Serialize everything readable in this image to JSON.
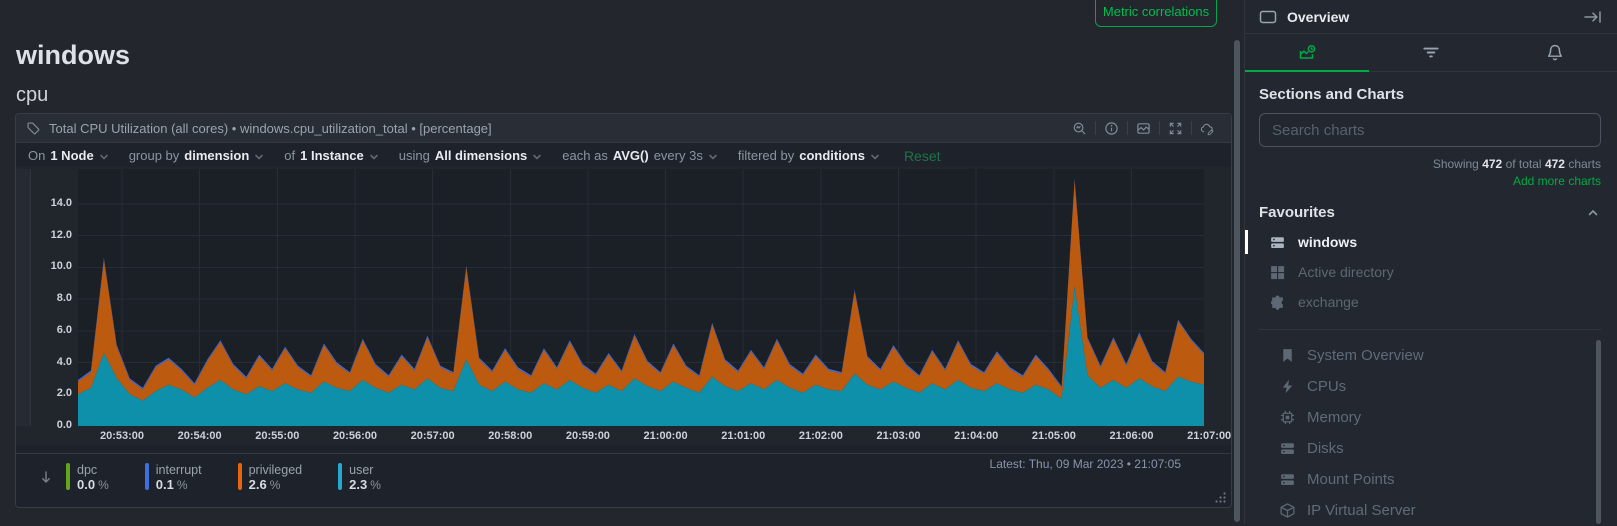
{
  "page": {
    "accent_green": "#00ab44"
  },
  "main": {
    "section_title": "windows",
    "subsection_title": "cpu",
    "metric_correlations_label": "Metric correlations",
    "chart": {
      "title": "Total CPU Utilization (all cores) • windows.cpu_utilization_total • [percentage]",
      "toolbar_icons": [
        "zoom-icon",
        "info-icon",
        "chart-type-icon",
        "fullscreen-icon",
        "annotate-icon"
      ],
      "controls": [
        {
          "prefix": "On",
          "value": "1 Node"
        },
        {
          "prefix": "group by",
          "value": "dimension"
        },
        {
          "prefix": "of",
          "value": "1 Instance"
        },
        {
          "prefix": "using",
          "value": "All dimensions"
        },
        {
          "prefix": "each as",
          "value": "AVG()",
          "suffix": "every 3s"
        },
        {
          "prefix": "filtered by",
          "value": "conditions"
        }
      ],
      "reset_label": "Reset",
      "latest_label": "Latest:",
      "latest_value": "Thu, 09 Mar 2023 • 21:07:05",
      "legend": [
        {
          "name": "dpc",
          "value": "0.0",
          "unit": "%",
          "color": "#64a520"
        },
        {
          "name": "interrupt",
          "value": "0.1",
          "unit": "%",
          "color": "#3f6fdd"
        },
        {
          "name": "privileged",
          "value": "2.6",
          "unit": "%",
          "color": "#e8650f"
        },
        {
          "name": "user",
          "value": "2.3",
          "unit": "%",
          "color": "#25a9d3"
        }
      ]
    }
  },
  "chart_data": {
    "type": "area",
    "stacked": true,
    "title": "Total CPU Utilization (all cores)",
    "context": "windows.cpu_utilization_total",
    "units": "percentage",
    "ylim": [
      0,
      16.2
    ],
    "yticks": [
      0,
      2,
      4,
      6,
      8,
      10,
      12,
      14
    ],
    "ytick_labels": [
      "0.0",
      "2.0",
      "4.0",
      "6.0",
      "8.0",
      "10.0",
      "12.0",
      "14.0"
    ],
    "x_tick_labels": [
      "20:53:00",
      "20:54:00",
      "20:55:00",
      "20:56:00",
      "20:57:00",
      "20:58:00",
      "20:59:00",
      "21:00:00",
      "21:01:00",
      "21:02:00",
      "21:03:00",
      "21:04:00",
      "21:05:00",
      "21:06:00",
      "21:07:00"
    ],
    "x_start_offset_s": 34,
    "x_span_s": 870,
    "x_tick_interval_s": 60,
    "sample_interval_s": 10,
    "grid": true,
    "legend_position": "bottom",
    "series": [
      {
        "name": "user",
        "color": "#0e90aa",
        "values": [
          2.0,
          2.4,
          4.6,
          3.0,
          2.0,
          1.6,
          2.2,
          2.6,
          2.3,
          1.8,
          2.4,
          2.9,
          2.3,
          2.0,
          2.5,
          2.2,
          2.7,
          2.3,
          2.1,
          2.8,
          2.4,
          2.2,
          2.9,
          2.4,
          2.1,
          2.6,
          2.3,
          3.0,
          2.4,
          2.2,
          4.2,
          2.6,
          2.2,
          2.8,
          2.3,
          2.1,
          2.7,
          2.3,
          2.9,
          2.4,
          2.1,
          2.6,
          2.2,
          3.0,
          2.5,
          2.2,
          2.8,
          2.4,
          2.1,
          3.1,
          2.5,
          2.2,
          2.7,
          2.3,
          2.9,
          2.4,
          2.1,
          2.6,
          2.3,
          2.2,
          3.3,
          2.6,
          2.3,
          2.8,
          2.4,
          2.1,
          2.7,
          2.3,
          2.9,
          2.4,
          2.2,
          2.7,
          2.3,
          2.1,
          2.6,
          2.3,
          1.7,
          8.8,
          3.2,
          2.4,
          2.9,
          2.4,
          3.0,
          2.5,
          2.2,
          3.1,
          2.8,
          2.6
        ]
      },
      {
        "name": "privileged",
        "color": "#bc5a0f",
        "values": [
          0.8,
          1.0,
          5.9,
          2.0,
          0.9,
          0.7,
          1.5,
          1.6,
          1.2,
          0.8,
          1.7,
          2.4,
          1.5,
          1.0,
          1.9,
          1.3,
          2.2,
          1.4,
          1.0,
          2.3,
          1.5,
          1.1,
          2.5,
          1.4,
          1.0,
          1.8,
          1.2,
          2.6,
          1.3,
          1.1,
          5.8,
          1.6,
          1.2,
          2.0,
          1.3,
          1.0,
          2.1,
          1.3,
          2.4,
          1.4,
          1.1,
          1.9,
          1.2,
          2.7,
          1.5,
          1.1,
          2.3,
          1.3,
          1.0,
          3.3,
          1.6,
          1.2,
          2.0,
          1.3,
          2.5,
          1.4,
          1.1,
          1.8,
          1.2,
          1.1,
          5.2,
          1.7,
          1.2,
          2.2,
          1.4,
          1.0,
          2.0,
          1.2,
          2.4,
          1.4,
          1.1,
          1.9,
          1.3,
          1.0,
          1.8,
          1.2,
          0.7,
          6.7,
          2.3,
          1.3,
          2.6,
          1.4,
          2.8,
          1.5,
          1.1,
          3.5,
          2.6,
          1.9
        ]
      },
      {
        "name": "interrupt",
        "color": "#3f6fdd",
        "constant": 0.1
      },
      {
        "name": "dpc",
        "color": "#64a520",
        "constant": 0.0
      }
    ]
  },
  "sidebar": {
    "header": {
      "title": "Overview"
    },
    "tabs": [
      {
        "icon": "charts-tab-icon",
        "active": true
      },
      {
        "icon": "filter-icon",
        "active": false
      },
      {
        "icon": "alerts-bell-icon",
        "active": false
      }
    ],
    "sections_heading": "Sections and Charts",
    "search_placeholder": "Search charts",
    "showing": {
      "prefix": "Showing",
      "count": "472",
      "middle": "of total",
      "total": "472",
      "suffix": "charts"
    },
    "add_more_label": "Add more charts",
    "favourites": {
      "heading": "Favourites",
      "items": [
        {
          "label": "windows",
          "icon": "server-icon",
          "active": true
        },
        {
          "label": "Active directory",
          "icon": "windows-logo-icon",
          "active": false
        },
        {
          "label": "exchange",
          "icon": "puzzle-icon",
          "active": false
        }
      ]
    },
    "menu_items": [
      {
        "label": "System Overview",
        "icon": "bookmark-icon"
      },
      {
        "label": "CPUs",
        "icon": "bolt-icon"
      },
      {
        "label": "Memory",
        "icon": "chip-icon"
      },
      {
        "label": "Disks",
        "icon": "server-icon"
      },
      {
        "label": "Mount Points",
        "icon": "server-icon"
      },
      {
        "label": "IP Virtual Server",
        "icon": "cube-icon"
      }
    ]
  }
}
